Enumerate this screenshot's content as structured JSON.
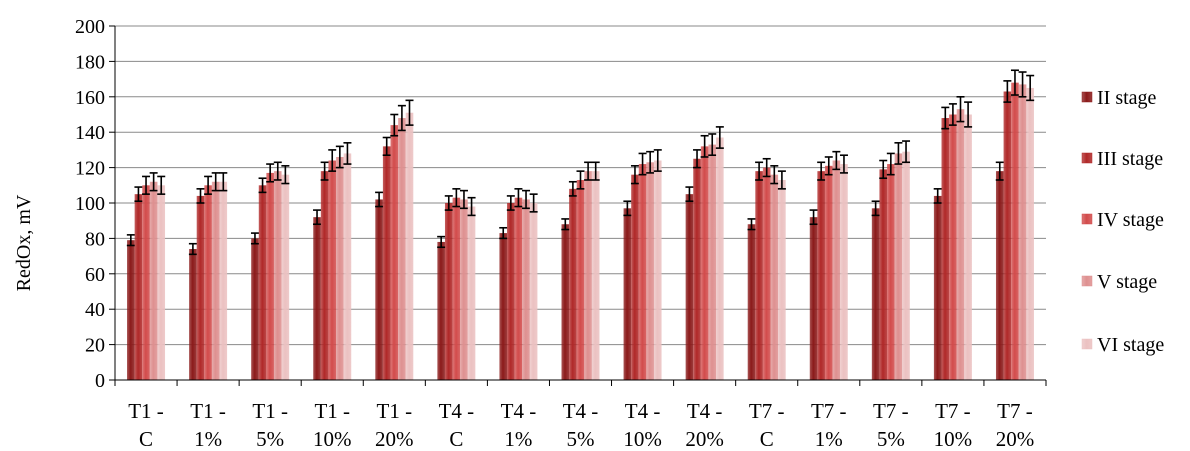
{
  "chart_data": {
    "type": "bar",
    "title": "",
    "xlabel": "",
    "ylabel": "RedOx, mV",
    "ylim": [
      0,
      200
    ],
    "yticks": [
      0,
      20,
      40,
      60,
      80,
      100,
      120,
      140,
      160,
      180,
      200
    ],
    "grid": true,
    "legend_position": "right",
    "error_bars": true,
    "categories": [
      [
        "T1 -",
        "C"
      ],
      [
        "T1 -",
        "1%"
      ],
      [
        "T1 -",
        "5%"
      ],
      [
        "T1 -",
        "10%"
      ],
      [
        "T1 -",
        "20%"
      ],
      [
        "T4 -",
        "C"
      ],
      [
        "T4 -",
        "1%"
      ],
      [
        "T4 -",
        "5%"
      ],
      [
        "T4 -",
        "10%"
      ],
      [
        "T4 -",
        "20%"
      ],
      [
        "T7 -",
        "C"
      ],
      [
        "T7 -",
        "1%"
      ],
      [
        "T7 -",
        "5%"
      ],
      [
        "T7 -",
        "10%"
      ],
      [
        "T7 -",
        "20%"
      ]
    ],
    "series": [
      {
        "name": "II stage",
        "color": "#8B1A1A",
        "values": [
          79,
          74,
          80,
          92,
          102,
          78,
          83,
          88,
          97,
          105,
          88,
          92,
          97,
          104,
          118
        ],
        "errors": [
          3,
          3,
          3,
          4,
          4,
          3,
          3,
          3,
          4,
          4,
          3,
          4,
          4,
          4,
          5
        ]
      },
      {
        "name": "III stage",
        "color": "#B02828",
        "values": [
          105,
          104,
          110,
          118,
          132,
          100,
          100,
          108,
          116,
          125,
          118,
          118,
          119,
          148,
          163
        ],
        "errors": [
          4,
          4,
          4,
          5,
          5,
          4,
          4,
          4,
          5,
          5,
          5,
          5,
          5,
          6,
          6
        ]
      },
      {
        "name": "IV stage",
        "color": "#D24B4B",
        "values": [
          110,
          110,
          117,
          124,
          144,
          103,
          103,
          113,
          122,
          132,
          120,
          121,
          122,
          150,
          168
        ],
        "errors": [
          5,
          5,
          5,
          6,
          6,
          5,
          5,
          5,
          6,
          6,
          5,
          5,
          6,
          6,
          7
        ]
      },
      {
        "name": "V stage",
        "color": "#DE9090",
        "values": [
          112,
          112,
          118,
          126,
          148,
          102,
          102,
          118,
          123,
          133,
          116,
          124,
          128,
          153,
          167
        ],
        "errors": [
          5,
          5,
          5,
          6,
          7,
          5,
          5,
          5,
          6,
          6,
          5,
          5,
          6,
          7,
          7
        ]
      },
      {
        "name": "VI stage",
        "color": "#EBC1C1",
        "values": [
          110,
          112,
          116,
          128,
          151,
          98,
          100,
          118,
          124,
          137,
          113,
          122,
          129,
          150,
          165
        ],
        "errors": [
          5,
          5,
          5,
          6,
          7,
          5,
          5,
          5,
          6,
          6,
          5,
          5,
          6,
          7,
          7
        ]
      }
    ]
  }
}
